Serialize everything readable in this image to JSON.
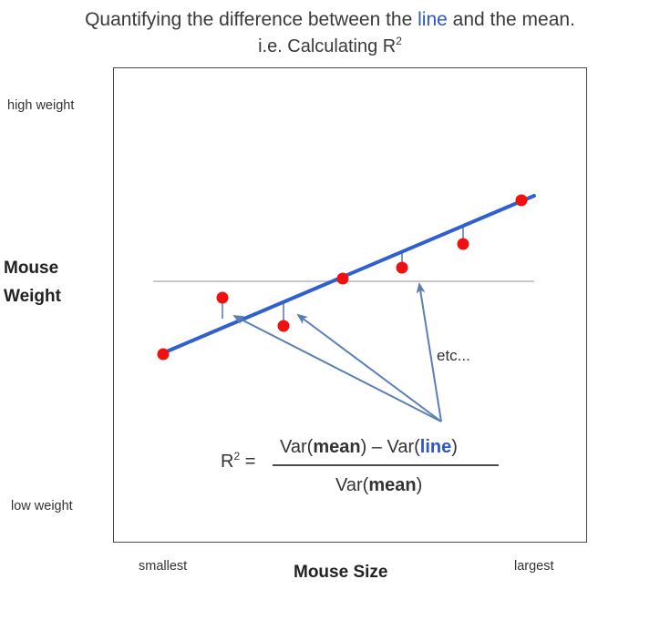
{
  "title": {
    "line1_before": "Quantifying the difference between the ",
    "line1_highlight": "line",
    "line1_after": " and the mean.",
    "line2_text": "i.e. Calculating R",
    "line2_sup": "2"
  },
  "axes": {
    "y_high": "high weight",
    "y_low": "low weight",
    "y_title_line1": "Mouse",
    "y_title_line2": "Weight",
    "x_low": "smallest",
    "x_high": "largest",
    "x_title": "Mouse Size"
  },
  "annotation": {
    "etc": "etc..."
  },
  "formula": {
    "lhs_base": "R",
    "lhs_sup": "2",
    "lhs_eq": " =",
    "num_var1_prefix": "Var(",
    "num_var1_bold": "mean",
    "num_var1_suffix": ")",
    "num_minus": " – ",
    "num_var2_prefix": "Var(",
    "num_var2_blue": "line",
    "num_var2_suffix": ")",
    "den_prefix": "Var(",
    "den_bold": "mean",
    "den_suffix": ")"
  },
  "colors": {
    "fit_line": "#2f5fd0",
    "mean_line": "#c8c8c8",
    "points": "#f01010",
    "arrows": "#5b7fb5",
    "highlight": "#2f56c9"
  }
}
